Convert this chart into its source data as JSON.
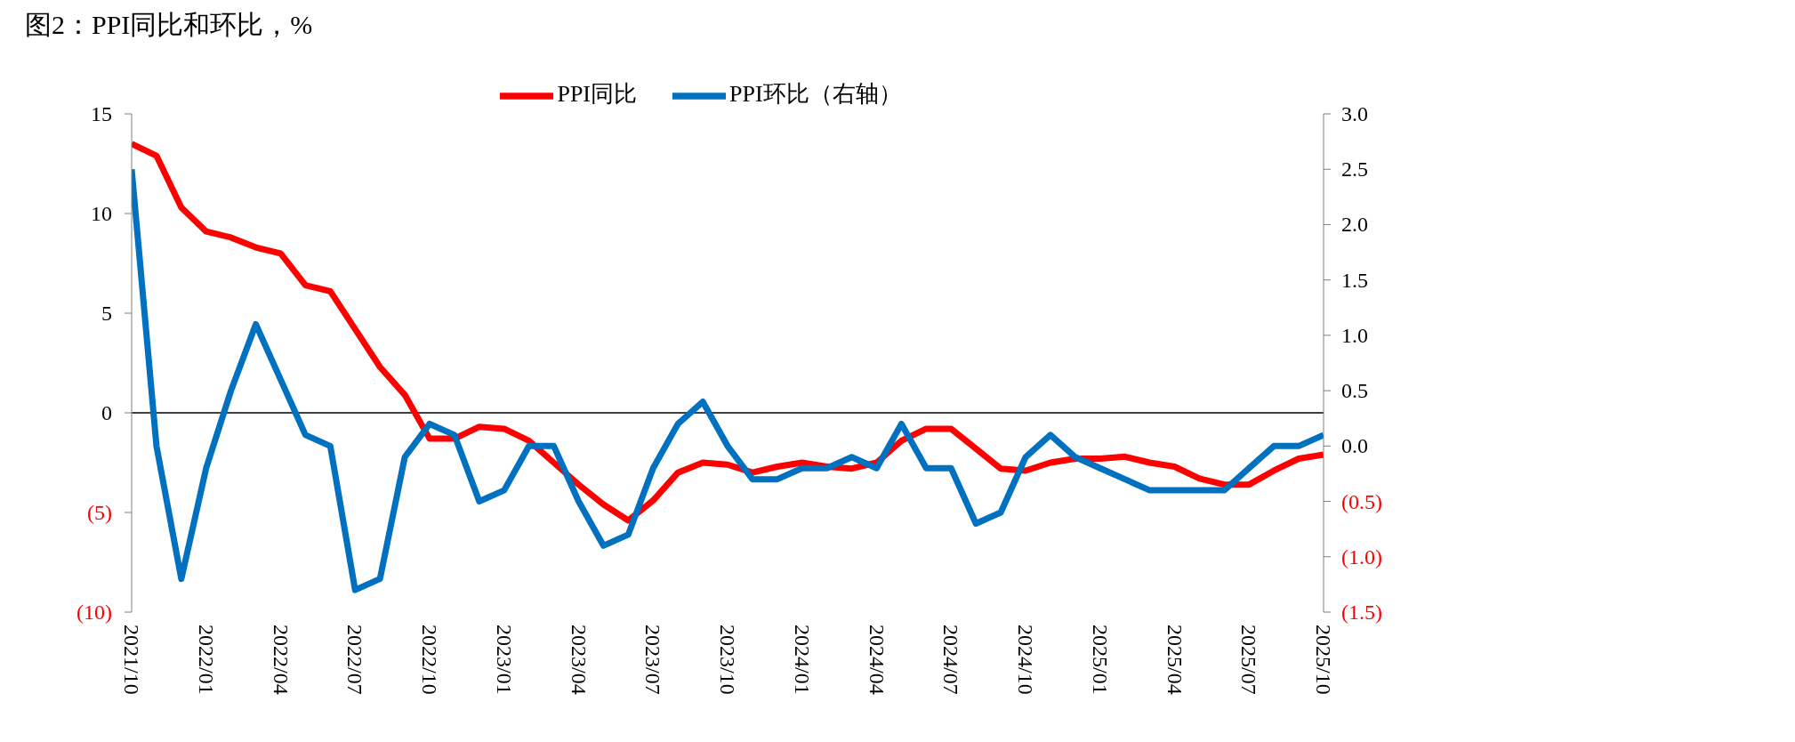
{
  "chart_data": {
    "type": "line",
    "title": "图2：PPI同比和环比，%",
    "categories": [
      "2021/10",
      null,
      null,
      "2022/01",
      null,
      null,
      "2022/04",
      null,
      null,
      "2022/07",
      null,
      null,
      "2022/10",
      null,
      null,
      "2023/01",
      null,
      null,
      "2023/04",
      null,
      null,
      "2023/07",
      null,
      null,
      "2023/10",
      null,
      null,
      "2024/01",
      null,
      null,
      "2024/04",
      null,
      null,
      "2024/07",
      null,
      null,
      "2024/10",
      null,
      null,
      "2025/01",
      null,
      null,
      "2025/04",
      null,
      null,
      "2025/07",
      null,
      null,
      "2025/10"
    ],
    "series": [
      {
        "name": "PPI同比",
        "color": "#ff0000",
        "values": [
          13.5,
          12.9,
          10.3,
          9.1,
          8.8,
          8.3,
          8.0,
          6.4,
          6.1,
          4.2,
          2.3,
          0.9,
          -1.3,
          -1.3,
          -0.7,
          -0.8,
          -1.4,
          -2.5,
          -3.6,
          -4.6,
          -5.4,
          -4.4,
          -3.0,
          -2.5,
          -2.6,
          -3.0,
          -2.7,
          -2.5,
          -2.7,
          -2.8,
          -2.5,
          -1.4,
          -0.8,
          -0.8,
          -1.8,
          -2.8,
          -2.9,
          -2.5,
          -2.3,
          -2.3,
          -2.2,
          -2.5,
          -2.7,
          -3.3,
          -3.6,
          -3.6,
          -2.9,
          -2.3,
          -2.1
        ]
      },
      {
        "name": "PPI环比（右轴）",
        "color": "#0070c0",
        "axis": "y2",
        "values": [
          2.5,
          0.0,
          -1.2,
          -0.2,
          0.5,
          1.1,
          0.6,
          0.1,
          0.0,
          -1.3,
          -1.2,
          -0.1,
          0.2,
          0.1,
          -0.5,
          -0.4,
          0.0,
          0.0,
          -0.5,
          -0.9,
          -0.8,
          -0.2,
          0.2,
          0.4,
          0.0,
          -0.3,
          -0.3,
          -0.2,
          -0.2,
          -0.1,
          -0.2,
          0.2,
          -0.2,
          -0.2,
          -0.7,
          -0.6,
          -0.1,
          0.1,
          -0.1,
          -0.2,
          -0.3,
          -0.4,
          -0.4,
          -0.4,
          -0.4,
          -0.2,
          0.0,
          0.0,
          0.1
        ]
      }
    ],
    "ylim": [
      -10,
      15
    ],
    "yticks": [
      {
        "value": -10,
        "label": "(10)"
      },
      {
        "value": -5,
        "label": "(5)"
      },
      0,
      5,
      10,
      15
    ],
    "y2lim": [
      -1.5,
      3.0
    ],
    "y2ticks": [
      {
        "value": -1.5,
        "label": "(1.5)"
      },
      {
        "value": -1.0,
        "label": "(1.0)"
      },
      {
        "value": -0.5,
        "label": "(0.5)"
      },
      {
        "value": 0,
        "label": "0.0"
      },
      {
        "value": 0.5,
        "label": "0.5"
      },
      {
        "value": 1.0,
        "label": "1.0"
      },
      {
        "value": 1.5,
        "label": "1.5"
      },
      {
        "value": 2.0,
        "label": "2.0"
      },
      {
        "value": 2.5,
        "label": "2.5"
      },
      {
        "value": 3.0,
        "label": "3.0"
      }
    ],
    "ref_lines": [
      {
        "axis": "y",
        "value": 0,
        "color": "#000000"
      }
    ],
    "legend": "top",
    "grid": false,
    "marker": "none",
    "line_style": "solid"
  }
}
